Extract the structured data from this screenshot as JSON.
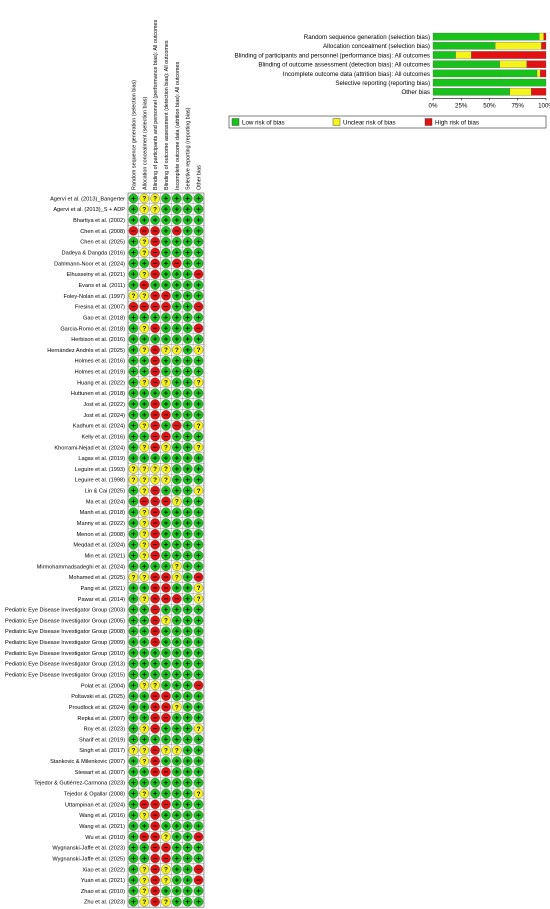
{
  "chart_data": [
    {
      "type": "stacked-bar-horizontal",
      "categories": [
        "Random sequence generation (selection bias)",
        "Allocation concealment (selection bias)",
        "Blinding of participants and personnel (performance bias): All outcomes",
        "Blinding of outcome assessment (detection bias): All outcomes",
        "Incomplete outcome data (attrition bias): All outcomes",
        "Selective reporting (reporting bias)",
        "Other bias"
      ],
      "series": [
        {
          "name": "Low risk of bias",
          "color": "#19c21a",
          "values": [
            94,
            55,
            20,
            59,
            92,
            100,
            68
          ]
        },
        {
          "name": "Unclear risk of bias",
          "color": "#f4f41a",
          "values": [
            4,
            41,
            14,
            24,
            3,
            0,
            19
          ]
        },
        {
          "name": "High risk of bias",
          "color": "#e31212",
          "values": [
            2,
            4,
            66,
            17,
            5,
            0,
            13
          ]
        }
      ],
      "xticks": [
        "0%",
        "25%",
        "50%",
        "75%",
        "100%"
      ],
      "xlim": [
        0,
        100
      ],
      "legend": "bottom"
    },
    {
      "type": "heatmap",
      "columns": [
        "Random sequence generation (selection bias)",
        "Allocation concealment (selection bias)",
        "Blinding of participants and personnel (performance bias): All outcomes",
        "Blinding of outcome assessment (detection bias): All outcomes",
        "Incomplete outcome data (attrition bias): All outcomes",
        "Selective reporting (reporting bias)",
        "Other bias"
      ],
      "symbols": {
        "L": "+",
        "U": "?",
        "H": "−"
      },
      "colors": {
        "L": "#19c21a",
        "U": "#f4f41a",
        "H": "#e31212"
      },
      "rows": [
        {
          "study": "Agervi et al. (2013)_Bangerter",
          "cells": "LUULLLL"
        },
        {
          "study": "Agervi et al. (2013)_S + ADP",
          "cells": "LUULLLL"
        },
        {
          "study": "Bhartiya et al. (2002)",
          "cells": "LLLLLLL"
        },
        {
          "study": "Chen et al. (2008)",
          "cells": "HHHLHLL"
        },
        {
          "study": "Chen et al. (2025)",
          "cells": "LUHLLLL"
        },
        {
          "study": "Dadeya & Dangda (2016)",
          "cells": "LUHLLLL"
        },
        {
          "study": "Dahlmann-Noor et al. (2024)",
          "cells": "LLHLHLL"
        },
        {
          "study": "Elhusseiny et al. (2021)",
          "cells": "LUHLLLH"
        },
        {
          "study": "Evans et al. (2011)",
          "cells": "LHLLLLL"
        },
        {
          "study": "Foley-Nolan et al. (1997)",
          "cells": "UUHHLLL"
        },
        {
          "study": "Fresina et al. (2007)",
          "cells": "HHHHLLH"
        },
        {
          "study": "Gao et al. (2018)",
          "cells": "LLLLLLL"
        },
        {
          "study": "Garcia-Romo et al. (2018)",
          "cells": "LUHLLLH"
        },
        {
          "study": "Herbison et al. (2016)",
          "cells": "LLLLLLL"
        },
        {
          "study": "Hernández Andrés et al. (2025)",
          "cells": "LUHUULU"
        },
        {
          "study": "Holmes et al. (2016)",
          "cells": "LLHLLLL"
        },
        {
          "study": "Holmes et al. (2019)",
          "cells": "LLHLLLL"
        },
        {
          "study": "Huang et al. (2022)",
          "cells": "LUHULLU"
        },
        {
          "study": "Huttunen et al. (2018)",
          "cells": "LLLLLLL"
        },
        {
          "study": "Jost et al. (2022)",
          "cells": "LLHLLLL"
        },
        {
          "study": "Jost et al. (2024)",
          "cells": "LLHHLLL"
        },
        {
          "study": "Kadhum et al. (2024)",
          "cells": "LUHLHLU"
        },
        {
          "study": "Kelly et al. (2016)",
          "cells": "LLHHLLL"
        },
        {
          "study": "Khorrami-Nejad et al. (2024)",
          "cells": "LUHULLU"
        },
        {
          "study": "Lagas et al. (2019)",
          "cells": "LLLLLLL"
        },
        {
          "study": "Leguire et al. (1993)",
          "cells": "UUUULLL"
        },
        {
          "study": "Leguire et al. (1998)",
          "cells": "UUUULLL"
        },
        {
          "study": "Lin & Cai (2025)",
          "cells": "LUHLLLU"
        },
        {
          "study": "Ma et al. (2024)",
          "cells": "LHHHULL"
        },
        {
          "study": "Manh et al. (2018)",
          "cells": "LUHLLLL"
        },
        {
          "study": "Manny et al. (2022)",
          "cells": "LUHLLLL"
        },
        {
          "study": "Menon et al. (2008)",
          "cells": "LUHLLLL"
        },
        {
          "study": "Meqdad et al. (2024)",
          "cells": "LUHLLLL"
        },
        {
          "study": "Min et al. (2021)",
          "cells": "LUHLLLL"
        },
        {
          "study": "Mirmohammadsadeghi et al. (2024)",
          "cells": "LLLLULL"
        },
        {
          "study": "Mohamed et al. (2025)",
          "cells": "UUHHULH"
        },
        {
          "study": "Pang et al. (2021)",
          "cells": "LLHHLLU"
        },
        {
          "study": "Pawar et al. (2014)",
          "cells": "LUHHHLU"
        },
        {
          "study": "Pediatric Eye Disease Investigator Group (2003)",
          "cells": "LLHLLLL"
        },
        {
          "study": "Pediatric Eye Disease Investigator Group (2005)",
          "cells": "LLHULLL"
        },
        {
          "study": "Pediatric Eye Disease Investigator Group (2008)",
          "cells": "LLHLLLL"
        },
        {
          "study": "Pediatric Eye Disease Investigator Group (2009)",
          "cells": "LLHLLLL"
        },
        {
          "study": "Pediatric Eye Disease Investigator Group (2010)",
          "cells": "LLLLLLL"
        },
        {
          "study": "Pediatric Eye Disease Investigator Group (2013)",
          "cells": "LLLLLLL"
        },
        {
          "study": "Pediatric Eye Disease Investigator Group (2015)",
          "cells": "LLLLLLL"
        },
        {
          "study": "Polat et al. (2004)",
          "cells": "LUULLLH"
        },
        {
          "study": "Poltavski et al. (2025)",
          "cells": "LLHHLLL"
        },
        {
          "study": "Proudlock et al. (2024)",
          "cells": "LLHHULL"
        },
        {
          "study": "Repka et al. (2007)",
          "cells": "LLHHLLL"
        },
        {
          "study": "Roy et al. (2023)",
          "cells": "LUHLLLU"
        },
        {
          "study": "Sharif et al. (2019)",
          "cells": "LLLLLLL"
        },
        {
          "study": "Singh et al. (2017)",
          "cells": "UUHUULL"
        },
        {
          "study": "Stankovic & Milenkovic (2007)",
          "cells": "LUHLLLL"
        },
        {
          "study": "Stewart et al. (2007)",
          "cells": "LLHHLLL"
        },
        {
          "study": "Tejedor & Gutiérrez-Carmona (2023)",
          "cells": "LLLLLLL"
        },
        {
          "study": "Tejedor & Ogallar (2008)",
          "cells": "LULLLLU"
        },
        {
          "study": "Uttampinan et al. (2024)",
          "cells": "LHHHLLL"
        },
        {
          "study": "Wang et al. (2016)",
          "cells": "LUHLLLL"
        },
        {
          "study": "Wang et al. (2021)",
          "cells": "LLHLLLL"
        },
        {
          "study": "Wu et al. (2010)",
          "cells": "LHHULLH"
        },
        {
          "study": "Wygnanski-Jaffe et al. (2023)",
          "cells": "LLHHLLL"
        },
        {
          "study": "Wygnanski-Jaffe et al. (2025)",
          "cells": "LLHHLLL"
        },
        {
          "study": "Xiao et al. (2022)",
          "cells": "LUHULLH"
        },
        {
          "study": "Yuan et al. (2021)",
          "cells": "LUHULLH"
        },
        {
          "study": "Zhao et al. (2010)",
          "cells": "LUHLLLL"
        },
        {
          "study": "Zhu et al. (2023)",
          "cells": "LUHULLL"
        }
      ]
    }
  ]
}
